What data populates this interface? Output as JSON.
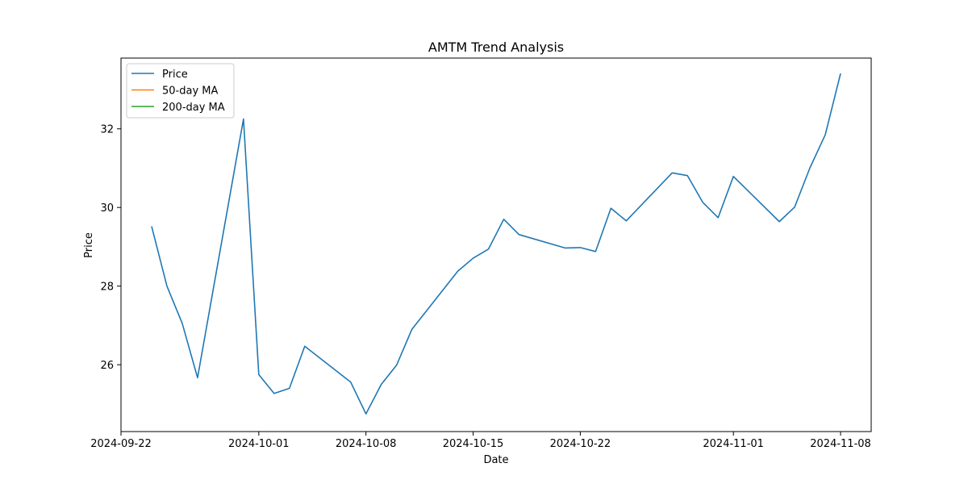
{
  "chart_data": {
    "type": "line",
    "title": "AMTM Trend Analysis",
    "xlabel": "Date",
    "ylabel": "Price",
    "x_ticks": [
      "2024-09-22",
      "2024-10-01",
      "2024-10-08",
      "2024-10-15",
      "2024-10-22",
      "2024-11-01",
      "2024-11-08"
    ],
    "y_ticks": [
      26,
      28,
      30,
      32
    ],
    "xlim": [
      "2024-09-22",
      "2024-11-10"
    ],
    "ylim": [
      24.3,
      33.8
    ],
    "grid": false,
    "legend_position": "top-left",
    "series": [
      {
        "name": "Price",
        "color": "#1f77b4",
        "points": [
          {
            "x": "2024-09-24",
            "y": 29.52
          },
          {
            "x": "2024-09-25",
            "y": 28.0
          },
          {
            "x": "2024-09-26",
            "y": 27.05
          },
          {
            "x": "2024-09-27",
            "y": 25.67
          },
          {
            "x": "2024-09-30",
            "y": 32.25
          },
          {
            "x": "2024-10-01",
            "y": 25.75
          },
          {
            "x": "2024-10-02",
            "y": 25.27
          },
          {
            "x": "2024-10-03",
            "y": 25.4
          },
          {
            "x": "2024-10-04",
            "y": 26.47
          },
          {
            "x": "2024-10-07",
            "y": 25.56
          },
          {
            "x": "2024-10-08",
            "y": 24.75
          },
          {
            "x": "2024-10-09",
            "y": 25.5
          },
          {
            "x": "2024-10-10",
            "y": 25.99
          },
          {
            "x": "2024-10-11",
            "y": 26.9
          },
          {
            "x": "2024-10-14",
            "y": 28.38
          },
          {
            "x": "2024-10-15",
            "y": 28.71
          },
          {
            "x": "2024-10-16",
            "y": 28.94
          },
          {
            "x": "2024-10-17",
            "y": 29.7
          },
          {
            "x": "2024-10-18",
            "y": 29.31
          },
          {
            "x": "2024-10-21",
            "y": 28.97
          },
          {
            "x": "2024-10-22",
            "y": 28.98
          },
          {
            "x": "2024-10-23",
            "y": 28.88
          },
          {
            "x": "2024-10-24",
            "y": 29.98
          },
          {
            "x": "2024-10-25",
            "y": 29.66
          },
          {
            "x": "2024-10-28",
            "y": 30.88
          },
          {
            "x": "2024-10-29",
            "y": 30.81
          },
          {
            "x": "2024-10-30",
            "y": 30.13
          },
          {
            "x": "2024-10-31",
            "y": 29.74
          },
          {
            "x": "2024-11-01",
            "y": 30.79
          },
          {
            "x": "2024-11-04",
            "y": 29.64
          },
          {
            "x": "2024-11-05",
            "y": 30.01
          },
          {
            "x": "2024-11-06",
            "y": 31.01
          },
          {
            "x": "2024-11-07",
            "y": 31.85
          },
          {
            "x": "2024-11-08",
            "y": 33.41
          }
        ]
      },
      {
        "name": "50-day MA",
        "color": "#ff7f0e",
        "points": []
      },
      {
        "name": "200-day MA",
        "color": "#2ca02c",
        "points": []
      }
    ]
  }
}
